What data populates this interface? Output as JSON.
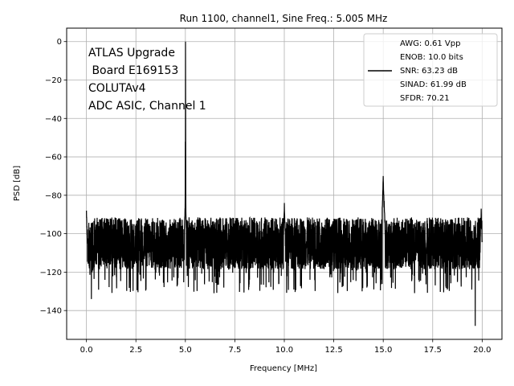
{
  "chart_data": {
    "type": "line",
    "title": "Run 1100, channel1, Sine Freq.: 5.005 MHz",
    "xlabel": "Frequency [MHz]",
    "ylabel": "PSD [dB]",
    "xlim": [
      -1.0,
      21.0
    ],
    "ylim": [
      -155,
      7
    ],
    "xticks": [
      0.0,
      2.5,
      5.0,
      7.5,
      10.0,
      12.5,
      15.0,
      17.5,
      20.0
    ],
    "xtick_labels": [
      "0.0",
      "2.5",
      "5.0",
      "7.5",
      "10.0",
      "12.5",
      "15.0",
      "17.5",
      "20.0"
    ],
    "yticks": [
      0,
      -20,
      -40,
      -60,
      -80,
      -100,
      -120,
      -140
    ],
    "ytick_labels": [
      "0",
      "−20",
      "−40",
      "−60",
      "−80",
      "−100",
      "−120",
      "−140"
    ],
    "grid": true,
    "line_color": "#000000",
    "noise_floor_db": -105,
    "noise_band_db": [
      -120,
      -93
    ],
    "peaks": [
      {
        "x": 0.0,
        "y": -88
      },
      {
        "x": 0.25,
        "y": -134
      },
      {
        "x": 5.005,
        "y": 0
      },
      {
        "x": 5.0,
        "y": -80
      },
      {
        "x": 10.0,
        "y": -84
      },
      {
        "x": 15.0,
        "y": -70
      },
      {
        "x": 15.05,
        "y": -83
      },
      {
        "x": 19.65,
        "y": -148
      },
      {
        "x": 19.95,
        "y": -87
      }
    ],
    "annotation_lines": [
      "ATLAS Upgrade",
      " Board E169153",
      "COLUTAv4",
      "ADC ASIC, Channel 1"
    ],
    "legend": {
      "placement": "top-right",
      "lines": [
        "AWG: 0.61 Vpp",
        "ENOB: 10.0 bits",
        "SNR: 63.23 dB",
        "SINAD: 61.99 dB",
        "SFDR: 70.21"
      ]
    }
  }
}
